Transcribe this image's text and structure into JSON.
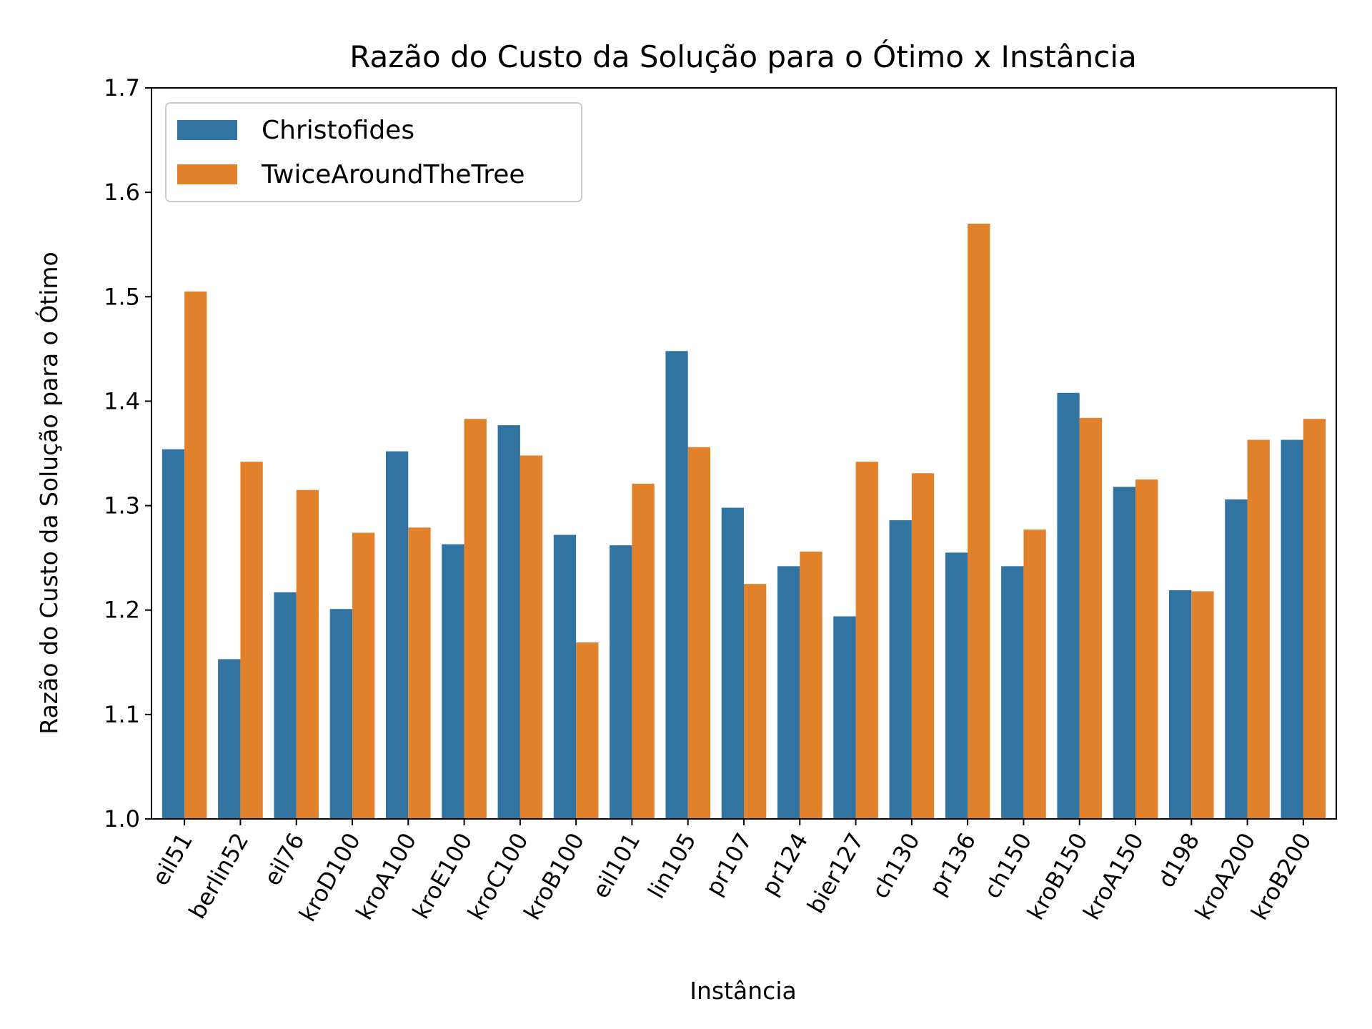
{
  "chart_data": {
    "type": "bar",
    "title": "Razão do Custo da Solução para o Ótimo x Instância",
    "xlabel": "Instância",
    "ylabel": "Razão do Custo da Solução para o Ótimo",
    "ylim": [
      1.0,
      1.7
    ],
    "yticks": [
      "1.0",
      "1.1",
      "1.2",
      "1.3",
      "1.4",
      "1.5",
      "1.6",
      "1.7"
    ],
    "grid": false,
    "legend_position": "top-left",
    "categories": [
      "eil51",
      "berlin52",
      "eil76",
      "kroD100",
      "kroA100",
      "kroE100",
      "kroC100",
      "kroB100",
      "eil101",
      "lin105",
      "pr107",
      "pr124",
      "bier127",
      "ch130",
      "pr136",
      "ch150",
      "kroB150",
      "kroA150",
      "d198",
      "kroA200",
      "kroB200"
    ],
    "series": [
      {
        "name": "Christofides",
        "color": "#3274a1",
        "values": [
          1.354,
          1.153,
          1.217,
          1.201,
          1.352,
          1.263,
          1.377,
          1.272,
          1.262,
          1.448,
          1.298,
          1.242,
          1.194,
          1.286,
          1.255,
          1.242,
          1.408,
          1.318,
          1.219,
          1.306,
          1.363
        ]
      },
      {
        "name": "TwiceAroundTheTree",
        "color": "#e1812c",
        "values": [
          1.505,
          1.342,
          1.315,
          1.274,
          1.279,
          1.383,
          1.348,
          1.169,
          1.321,
          1.356,
          1.225,
          1.256,
          1.342,
          1.331,
          1.57,
          1.277,
          1.384,
          1.325,
          1.218,
          1.363,
          1.383
        ]
      }
    ]
  }
}
